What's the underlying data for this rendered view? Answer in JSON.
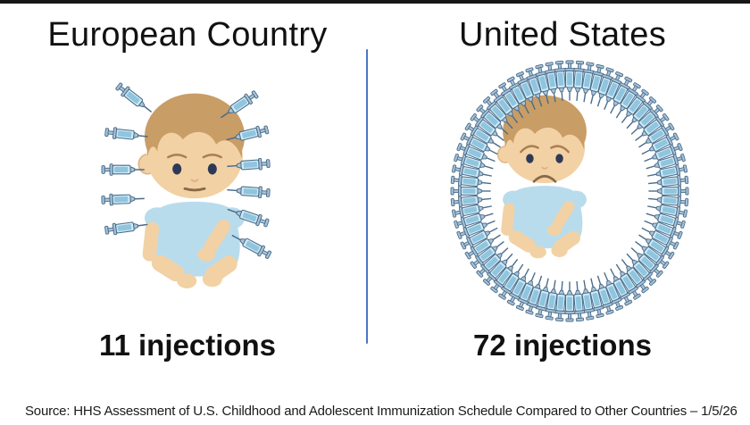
{
  "chart_data": {
    "type": "bar",
    "presentation": "pictogram comparison — syringes surrounding baby illustrations",
    "categories": [
      "European Country",
      "United States"
    ],
    "values": [
      11,
      72
    ],
    "value_unit": "injections",
    "title": "",
    "xlabel": "",
    "ylabel": "injections",
    "legend": "none",
    "annotations": [
      "11 injections",
      "72 injections"
    ]
  },
  "panels": {
    "left": {
      "title": "European Country",
      "injections": 11,
      "count_label": "11 injections",
      "baby_mood": "calm",
      "syringe_layout": "scattered-sides"
    },
    "right": {
      "title": "United States",
      "injections": 72,
      "count_label": "72 injections",
      "baby_mood": "sad",
      "syringe_layout": "ring"
    }
  },
  "footer": {
    "source": "Source: HHS Assessment of U.S. Childhood and Adolescent Immunization Schedule Compared to Other Countries – 1/5/26"
  },
  "colors": {
    "divider": "#4a74c4",
    "top_bar": "#161616",
    "title_text": "#111111",
    "count_text": "#111111",
    "source_text": "#1a1a1a",
    "syringe_outline": "#4a6b8a",
    "syringe_barrel": "#cfe9f4",
    "syringe_liquid": "#8fc5de",
    "syringe_metal": "#a8c4d8",
    "skin": "#f2d1a5",
    "skin_shade": "#e0b386",
    "hair": "#c89d66",
    "onesie": "#b9dcec",
    "eyes": "#2e3a55",
    "brow": "#a97e52",
    "mouth": "#8a6a46"
  },
  "icons": {
    "syringe-icon": "vaccine syringe pictogram"
  }
}
